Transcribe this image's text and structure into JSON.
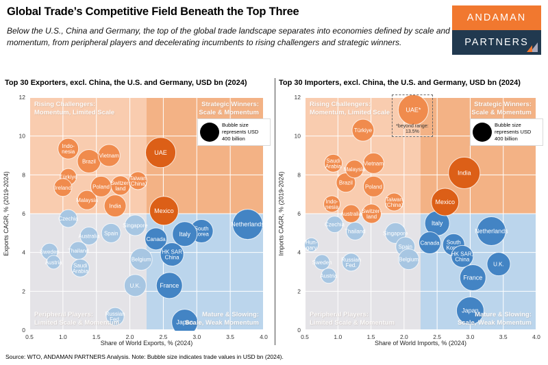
{
  "header": {
    "title": "Global Trade’s Competitive Field Beneath the Top Three",
    "subtitle": "Below the U.S., China and Germany, the top of the global trade landscape separates into economies defined by scale and momentum, from peripheral players and decelerating incumbents to rising challengers and strategic winners.",
    "logo": {
      "line1": "ANDAMAN",
      "line2": "PARTNERS"
    }
  },
  "footer": {
    "source": "Source: WTO, ANDAMAN PARTNERS Analysis. Note: Bubble size indicates trade values in USD bn (2024)."
  },
  "colors": {
    "logo_orange": "#F1782F",
    "logo_navy": "#21394F",
    "sail_gray": "#A9A9BC",
    "grid": "#FFFFFF",
    "bubble_stroke": "rgba(255,255,255,0.75)",
    "quadrants": {
      "top_left": "#F9CCAF",
      "top_right": "#F3B285",
      "bottom_left": "#E4E3E7",
      "bottom_right": "#BBD5EC"
    },
    "tiers": {
      "orange": "#F08B4D",
      "dark-orange": "#DC5F17",
      "light-blue": "#A7C6E2",
      "dark-blue": "#4384C4"
    }
  },
  "chart_data": [
    {
      "type": "scatter",
      "title": "Top 30 Exporters, excl. China, the U.S. and Germany, USD bn (2024)",
      "xlabel": "Share of World Exports, % (2024)",
      "ylabel": "Exports CAGR, % (2019-2024)",
      "xlim": [
        0.5,
        4.0
      ],
      "ylim": [
        0,
        12
      ],
      "xticks": [
        0.5,
        1.0,
        1.5,
        2.0,
        2.5,
        3.0,
        3.5,
        4.0
      ],
      "xtick_labels": [
        "0.5",
        "1.0",
        "1.5",
        "2.0",
        "2.5",
        "3.0",
        "3.5",
        "4.0"
      ],
      "yticks": [
        0,
        2,
        4,
        6,
        8,
        10,
        12
      ],
      "ytick_labels": [
        "0",
        "2",
        "4",
        "6",
        "8",
        "10",
        "12"
      ],
      "quadrant_split": {
        "x": 2.25,
        "y": 6
      },
      "quadrant_labels": {
        "top_left": "Rising Challengers:\nMomentum, Limited Scale",
        "top_right": "Strategic Winners:\nScale & Momentum",
        "bottom_left": "Peripheral Players:\nLimited Scale & Momentum",
        "bottom_right": "Mature & Slowing:\nScale, Weak Momentum"
      },
      "legend": {
        "text": "Bubble size represents USD 400 billion"
      },
      "points": [
        {
          "label": "Sweden",
          "x": 0.8,
          "y": 4.05,
          "r": 12,
          "tier": "light-blue"
        },
        {
          "label": "Austria",
          "x": 0.86,
          "y": 3.5,
          "r": 10,
          "tier": "light-blue"
        },
        {
          "label": "Thailand",
          "x": 1.23,
          "y": 4.1,
          "r": 13,
          "tier": "light-blue"
        },
        {
          "label": "Saudi\nArabia",
          "x": 1.26,
          "y": 3.2,
          "r": 13,
          "tier": "light-blue"
        },
        {
          "label": "Czechia",
          "x": 1.08,
          "y": 5.75,
          "r": 13,
          "tier": "light-blue"
        },
        {
          "label": "Australia",
          "x": 1.39,
          "y": 4.85,
          "r": 13,
          "tier": "light-blue"
        },
        {
          "label": "Spain",
          "x": 1.72,
          "y": 5.0,
          "r": 14,
          "tier": "light-blue"
        },
        {
          "label": "Singapore",
          "x": 2.08,
          "y": 5.4,
          "r": 15,
          "tier": "light-blue"
        },
        {
          "label": "Russian\nFed.",
          "x": 1.78,
          "y": 0.7,
          "r": 13,
          "tier": "light-blue"
        },
        {
          "label": "U.K.",
          "x": 2.08,
          "y": 2.3,
          "r": 16,
          "tier": "light-blue"
        },
        {
          "label": "Belgium",
          "x": 2.17,
          "y": 3.65,
          "r": 16,
          "tier": "light-blue"
        },
        {
          "label": "Netherlands",
          "x": 3.76,
          "y": 5.45,
          "r": 22,
          "tier": "dark-blue"
        },
        {
          "label": "South\nKorea",
          "x": 3.07,
          "y": 5.1,
          "r": 17,
          "tier": "dark-blue"
        },
        {
          "label": "Italy",
          "x": 2.82,
          "y": 4.95,
          "r": 18,
          "tier": "dark-blue"
        },
        {
          "label": "Canada",
          "x": 2.39,
          "y": 4.7,
          "r": 16,
          "tier": "dark-blue"
        },
        {
          "label": "HK SAR\nChina",
          "x": 2.63,
          "y": 3.9,
          "r": 17,
          "tier": "dark-blue"
        },
        {
          "label": "France",
          "x": 2.59,
          "y": 2.3,
          "r": 19,
          "tier": "dark-blue"
        },
        {
          "label": "Japan",
          "x": 2.82,
          "y": 0.4,
          "r": 19,
          "tier": "dark-blue"
        },
        {
          "label": "Indo-\nnesia",
          "x": 1.08,
          "y": 9.35,
          "r": 15,
          "tier": "orange"
        },
        {
          "label": "Türkiye",
          "x": 1.08,
          "y": 7.9,
          "r": 12,
          "tier": "orange"
        },
        {
          "label": "Ireland",
          "x": 1.0,
          "y": 7.35,
          "r": 13,
          "tier": "orange"
        },
        {
          "label": "Brazil",
          "x": 1.39,
          "y": 8.7,
          "r": 17,
          "tier": "orange"
        },
        {
          "label": "Vietnam",
          "x": 1.69,
          "y": 9.0,
          "r": 16,
          "tier": "orange"
        },
        {
          "label": "Malaysia",
          "x": 1.36,
          "y": 6.7,
          "r": 14,
          "tier": "orange"
        },
        {
          "label": "Poland",
          "x": 1.57,
          "y": 7.4,
          "r": 15,
          "tier": "orange"
        },
        {
          "label": "Switzer-\nland",
          "x": 1.86,
          "y": 7.45,
          "r": 14,
          "tier": "orange"
        },
        {
          "label": "Taiwan\n(China)",
          "x": 2.12,
          "y": 7.7,
          "r": 13,
          "tier": "orange"
        },
        {
          "label": "India",
          "x": 1.78,
          "y": 6.4,
          "r": 16,
          "tier": "orange"
        },
        {
          "label": "UAE",
          "x": 2.46,
          "y": 9.15,
          "r": 22,
          "tier": "dark-orange"
        },
        {
          "label": "Mexico",
          "x": 2.51,
          "y": 6.15,
          "r": 21,
          "tier": "dark-orange"
        }
      ]
    },
    {
      "type": "scatter",
      "title": "Top 30 Importers, excl. China, the U.S. and Germany, USD bn (2024)",
      "xlabel": "Share of World Imports, % (2024)",
      "ylabel": "Imports CAGR, % (2019-2024)",
      "xlim": [
        0.5,
        4.0
      ],
      "ylim": [
        0,
        12
      ],
      "xticks": [
        0.5,
        1.0,
        1.5,
        2.0,
        2.5,
        3.0,
        3.5,
        4.0
      ],
      "xtick_labels": [
        "0.5",
        "1.0",
        "1.5",
        "2.0",
        "2.5",
        "3.0",
        "3.5",
        "4.0"
      ],
      "yticks": [
        0,
        2,
        4,
        6,
        8,
        10,
        12
      ],
      "ytick_labels": [
        "0",
        "2",
        "4",
        "6",
        "8",
        "10",
        "12"
      ],
      "quadrant_split": {
        "x": 2.25,
        "y": 6
      },
      "quadrant_labels": {
        "top_left": "Rising Challengers:\nMomentum, Limited Scale",
        "top_right": "Strategic Winners:\nScale & Momentum",
        "bottom_left": "Peripheral Players:\nLimited Scale & Momentum",
        "bottom_right": "Mature & Slowing:\nScale, Weak Momentum"
      },
      "legend": {
        "text": "Bubble size represents USD 400 billion"
      },
      "annotation": {
        "x1": 1.81,
        "x2": 2.44,
        "y1": 9.95,
        "y2": 12.15,
        "note": "*beyond range:\n13.5%"
      },
      "points": [
        {
          "label": "Hun-\ngary",
          "x": 0.6,
          "y": 4.4,
          "r": 10,
          "tier": "light-blue"
        },
        {
          "label": "Sweden",
          "x": 0.76,
          "y": 3.5,
          "r": 11,
          "tier": "light-blue"
        },
        {
          "label": "Austria",
          "x": 0.86,
          "y": 2.8,
          "r": 11,
          "tier": "light-blue"
        },
        {
          "label": "Russian\nFed.",
          "x": 1.2,
          "y": 3.5,
          "r": 13,
          "tier": "light-blue"
        },
        {
          "label": "Czechia",
          "x": 0.95,
          "y": 5.45,
          "r": 12,
          "tier": "light-blue"
        },
        {
          "label": "Thailand",
          "x": 1.26,
          "y": 5.1,
          "r": 13,
          "tier": "light-blue"
        },
        {
          "label": "Singapore",
          "x": 1.87,
          "y": 5.0,
          "r": 15,
          "tier": "light-blue"
        },
        {
          "label": "Spain",
          "x": 2.02,
          "y": 4.3,
          "r": 14,
          "tier": "light-blue"
        },
        {
          "label": "Belgium",
          "x": 2.07,
          "y": 3.65,
          "r": 15,
          "tier": "light-blue"
        },
        {
          "label": "Netherlands",
          "x": 3.32,
          "y": 5.1,
          "r": 21,
          "tier": "dark-blue"
        },
        {
          "label": "Italy",
          "x": 2.5,
          "y": 5.5,
          "r": 18,
          "tier": "dark-blue"
        },
        {
          "label": "Canada",
          "x": 2.39,
          "y": 4.5,
          "r": 16,
          "tier": "dark-blue"
        },
        {
          "label": "South\nKorea",
          "x": 2.75,
          "y": 4.4,
          "r": 16,
          "tier": "dark-blue"
        },
        {
          "label": "HK SAR,\nChina",
          "x": 2.88,
          "y": 3.8,
          "r": 16,
          "tier": "dark-blue"
        },
        {
          "label": "U.K.",
          "x": 3.43,
          "y": 3.4,
          "r": 17,
          "tier": "dark-blue"
        },
        {
          "label": "France",
          "x": 3.04,
          "y": 2.7,
          "r": 19,
          "tier": "dark-blue"
        },
        {
          "label": "Japan",
          "x": 3.0,
          "y": 1.0,
          "r": 20,
          "tier": "dark-blue"
        },
        {
          "label": "Saudi\nArabia",
          "x": 0.93,
          "y": 8.6,
          "r": 13,
          "tier": "orange"
        },
        {
          "label": "Indo-\nnesia",
          "x": 0.91,
          "y": 6.5,
          "r": 12,
          "tier": "orange"
        },
        {
          "label": "Brazil",
          "x": 1.12,
          "y": 7.6,
          "r": 14,
          "tier": "orange"
        },
        {
          "label": "Malaysia",
          "x": 1.25,
          "y": 8.3,
          "r": 13,
          "tier": "orange"
        },
        {
          "label": "Türkiye",
          "x": 1.38,
          "y": 10.3,
          "r": 16,
          "tier": "orange"
        },
        {
          "label": "Vietnam",
          "x": 1.54,
          "y": 8.6,
          "r": 15,
          "tier": "orange"
        },
        {
          "label": "Poland",
          "x": 1.54,
          "y": 7.4,
          "r": 15,
          "tier": "orange"
        },
        {
          "label": "Australia",
          "x": 1.2,
          "y": 6.0,
          "r": 13,
          "tier": "orange"
        },
        {
          "label": "Switzer-\nland",
          "x": 1.51,
          "y": 6.0,
          "r": 14,
          "tier": "orange"
        },
        {
          "label": "Taiwan\n(China)",
          "x": 1.85,
          "y": 6.6,
          "r": 13,
          "tier": "orange"
        },
        {
          "label": "UAE*",
          "x": 2.14,
          "y": 11.35,
          "r": 22,
          "tier": "orange"
        },
        {
          "label": "India",
          "x": 2.91,
          "y": 8.1,
          "r": 23,
          "tier": "dark-orange"
        },
        {
          "label": "Mexico",
          "x": 2.62,
          "y": 6.6,
          "r": 20,
          "tier": "dark-orange"
        }
      ]
    }
  ]
}
